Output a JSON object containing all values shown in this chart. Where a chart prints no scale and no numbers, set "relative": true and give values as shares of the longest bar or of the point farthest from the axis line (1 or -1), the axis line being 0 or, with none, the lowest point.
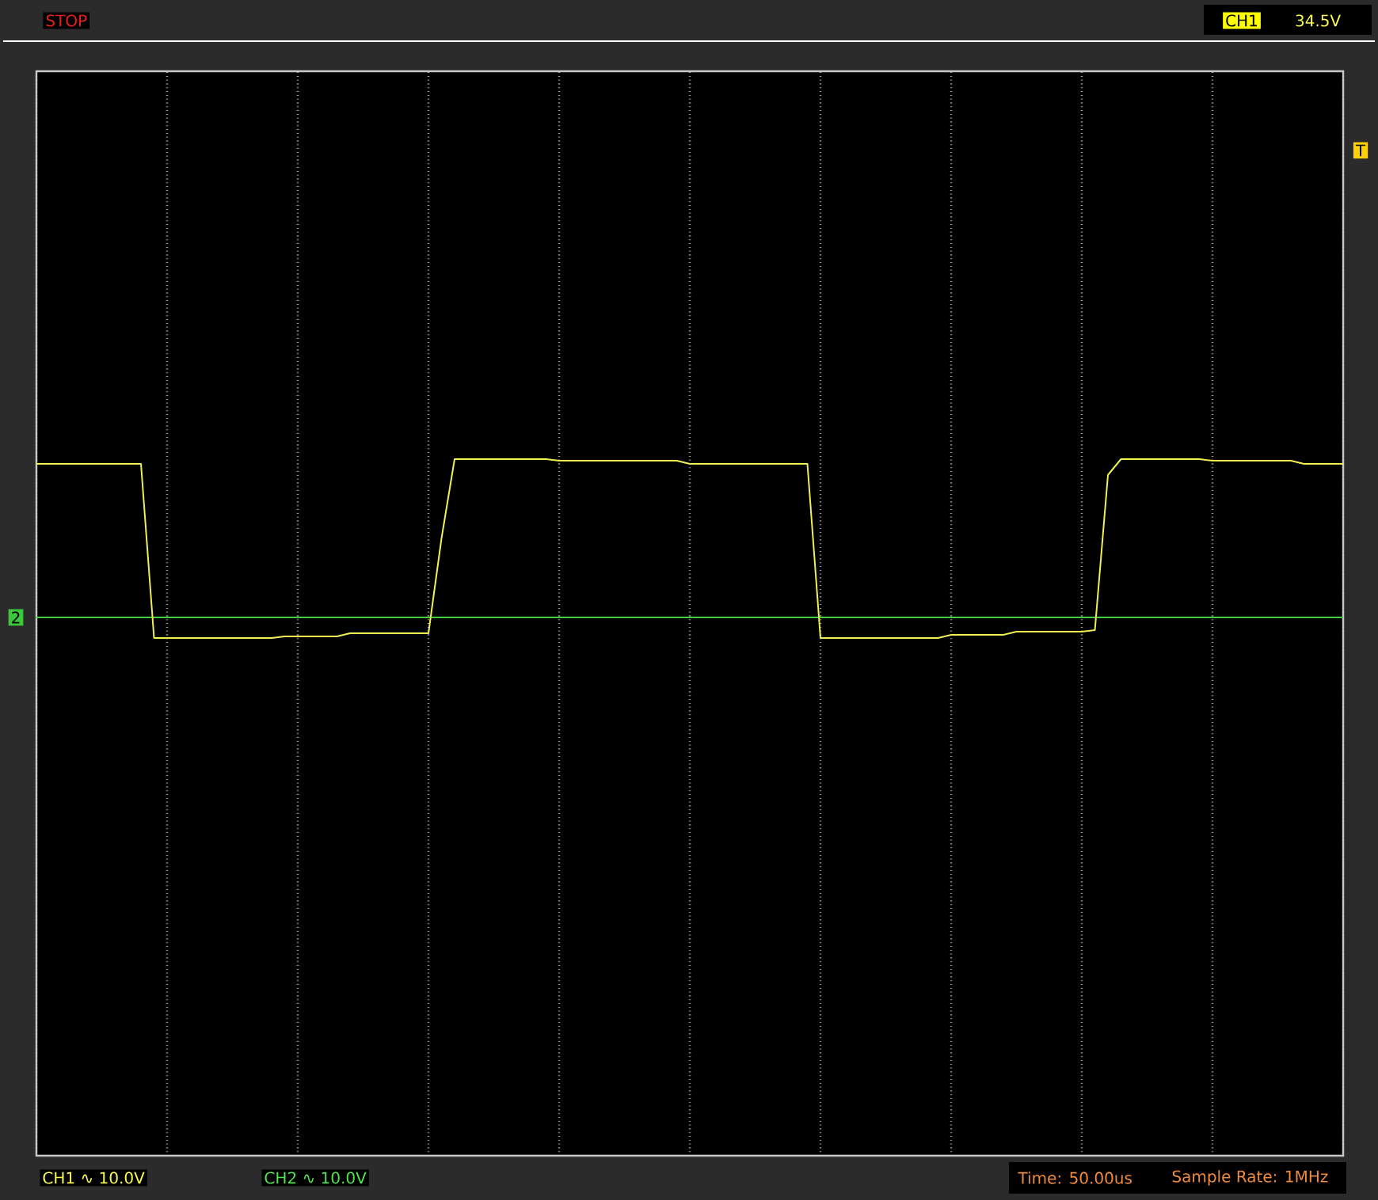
{
  "chart_data": {
    "type": "line",
    "relative": true,
    "categories": [
      null,
      null,
      null,
      null,
      null,
      null,
      null,
      null,
      null,
      null,
      null,
      null,
      null,
      null,
      null,
      null,
      null,
      null,
      null,
      null,
      null,
      null,
      null,
      null,
      null,
      null,
      null,
      null,
      null,
      null,
      null,
      null,
      null,
      null,
      null,
      null,
      null,
      null,
      null,
      null,
      null,
      null,
      null,
      null,
      null,
      null,
      null,
      null,
      null,
      null,
      null,
      null,
      null,
      null,
      null,
      null,
      null,
      null,
      null,
      null,
      null,
      null,
      null,
      null,
      null,
      null,
      null,
      null,
      null,
      null,
      null,
      null,
      null,
      null,
      null,
      null,
      null,
      null,
      null,
      null,
      null,
      null,
      null,
      null,
      null,
      null,
      null,
      null,
      null,
      null,
      null,
      null,
      null,
      null,
      null,
      null,
      null,
      null,
      null,
      null,
      null
    ],
    "series": [
      {
        "color": "#f0f050",
        "values": [
          0.97,
          0.97,
          0.97,
          0.97,
          0.97,
          0.97,
          0.97,
          0.97,
          0.97,
          -0.13,
          -0.13,
          -0.13,
          -0.13,
          -0.13,
          -0.13,
          -0.13,
          -0.13,
          -0.13,
          -0.13,
          -0.12,
          -0.12,
          -0.12,
          -0.12,
          -0.12,
          -0.1,
          -0.1,
          -0.1,
          -0.1,
          -0.1,
          -0.1,
          -0.1,
          0.5,
          1.0,
          1.0,
          1.0,
          1.0,
          1.0,
          1.0,
          1.0,
          1.0,
          0.99,
          0.99,
          0.99,
          0.99,
          0.99,
          0.99,
          0.99,
          0.99,
          0.99,
          0.99,
          0.97,
          0.97,
          0.97,
          0.97,
          0.97,
          0.97,
          0.97,
          0.97,
          0.97,
          0.97,
          -0.13,
          -0.13,
          -0.13,
          -0.13,
          -0.13,
          -0.13,
          -0.13,
          -0.13,
          -0.13,
          -0.13,
          -0.11,
          -0.11,
          -0.11,
          -0.11,
          -0.11,
          -0.09,
          -0.09,
          -0.09,
          -0.09,
          -0.09,
          -0.09,
          -0.08,
          0.9,
          1.0,
          1.0,
          1.0,
          1.0,
          1.0,
          1.0,
          1.0,
          0.99,
          0.99,
          0.99,
          0.99,
          0.99,
          0.99,
          0.99,
          0.97,
          0.97,
          0.97,
          0.97
        ]
      }
    ],
    "ref_lines": [
      {
        "axis": "y",
        "value": 0,
        "color": "#40d040"
      }
    ],
    "grid": "x",
    "annotations": [
      "STOP",
      "CH1",
      "34.5V",
      "T",
      "2",
      "CH1 ∿ 10.0V",
      "CH2 ∿ 10.0V",
      "Time: 50.00us",
      "Sample Rate: 1MHz"
    ]
  }
}
